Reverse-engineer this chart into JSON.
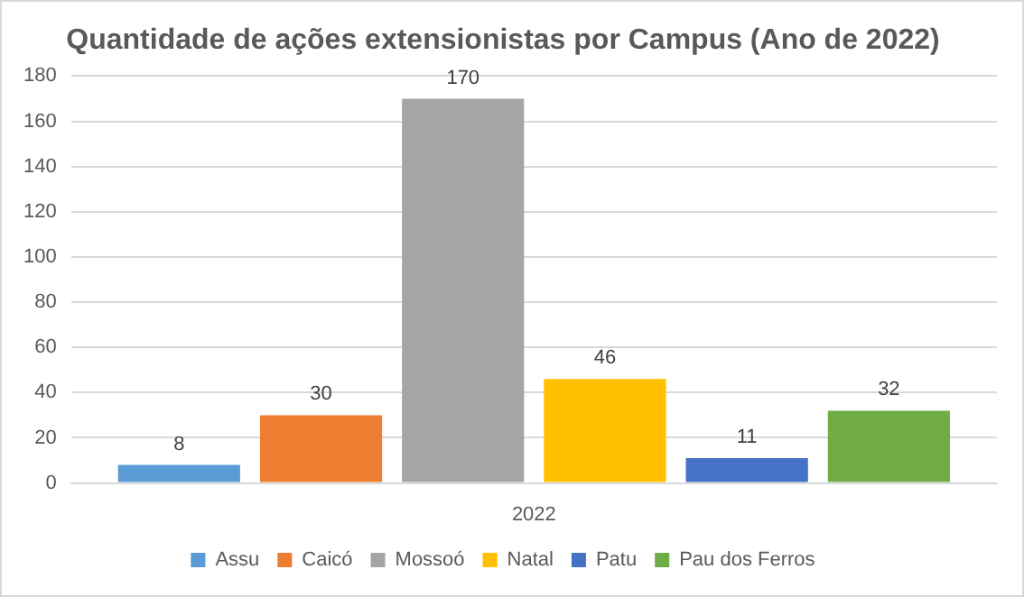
{
  "chart_data": {
    "type": "bar",
    "title": "Quantidade de ações extensionistas por Campus (Ano de 2022)",
    "categories": [
      "2022"
    ],
    "series": [
      {
        "name": "Assu",
        "color": "#5b9bd5",
        "values": [
          8
        ]
      },
      {
        "name": "Caicó",
        "color": "#ed7d31",
        "values": [
          30
        ]
      },
      {
        "name": "Mossoó",
        "color": "#a5a5a5",
        "values": [
          170
        ]
      },
      {
        "name": "Natal",
        "color": "#ffc000",
        "values": [
          46
        ]
      },
      {
        "name": "Patu",
        "color": "#4472c4",
        "values": [
          11
        ]
      },
      {
        "name": "Pau dos Ferros",
        "color": "#70ad47",
        "values": [
          32
        ]
      }
    ],
    "ylim": [
      0,
      180
    ],
    "yticks": [
      0,
      20,
      40,
      60,
      80,
      100,
      120,
      140,
      160,
      180
    ],
    "grid": "y",
    "legend": "bottom",
    "data_labels": true
  }
}
